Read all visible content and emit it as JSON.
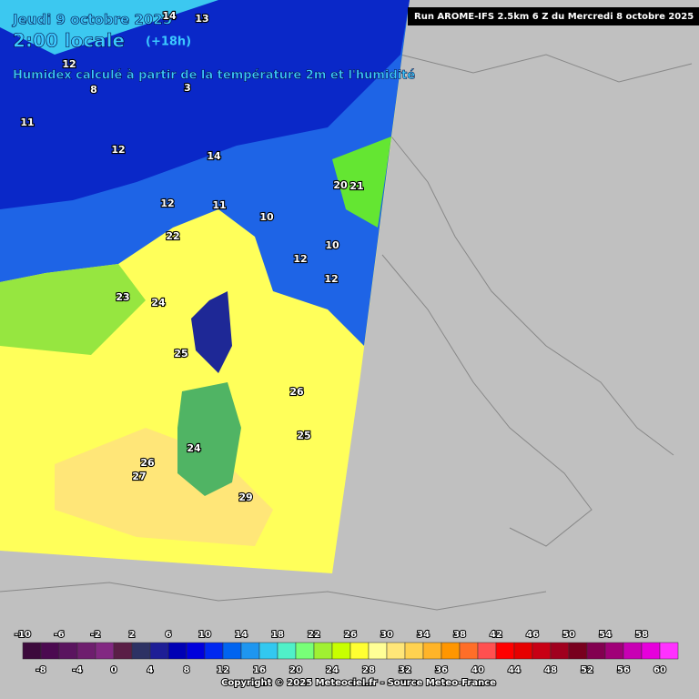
{
  "header": {
    "date": "Jeudi 9 octobre 2025",
    "time": "2:00 locale",
    "lead": "(+18h)",
    "description": "Humidex calculé à partir de la température 2m et l'humidité",
    "run": "Run AROME-IFS 2.5km 6 Z du Mercredi 8 octobre 2025"
  },
  "map_labels": [
    23,
    24,
    25,
    26,
    25,
    27,
    26,
    29,
    24,
    22,
    12,
    11,
    10,
    10,
    12,
    12,
    21,
    20,
    14,
    8,
    12,
    14,
    11,
    3,
    12,
    13
  ],
  "legend": {
    "values": [
      -10,
      -8,
      -6,
      -4,
      -2,
      0,
      2,
      4,
      6,
      8,
      10,
      12,
      14,
      16,
      18,
      20,
      22,
      24,
      26,
      28,
      30,
      32,
      34,
      36,
      38,
      40,
      42,
      44,
      46,
      48,
      50,
      52,
      54,
      56,
      58,
      60
    ],
    "colors": [
      "#3c0a3c",
      "#4b0a50",
      "#5a145f",
      "#6e1e6e",
      "#822882",
      "#5a1e46",
      "#2d3264",
      "#1e1e96",
      "#0000b4",
      "#0000dc",
      "#0028f0",
      "#0064f0",
      "#1e96f0",
      "#32c8f0",
      "#50f0c8",
      "#78ff78",
      "#a0f032",
      "#c8ff00",
      "#ffff32",
      "#ffff96",
      "#ffe678",
      "#ffd250",
      "#ffb428",
      "#ff9600",
      "#ff6e28",
      "#ff5050",
      "#ff0000",
      "#e60000",
      "#c80014",
      "#a0001e",
      "#78001e",
      "#820050",
      "#a00078",
      "#c800b4",
      "#e600dc",
      "#ff32ff"
    ]
  },
  "footer": {
    "copyright": "Copyright © 2025 Meteociel.fr - Source Meteo-France"
  }
}
